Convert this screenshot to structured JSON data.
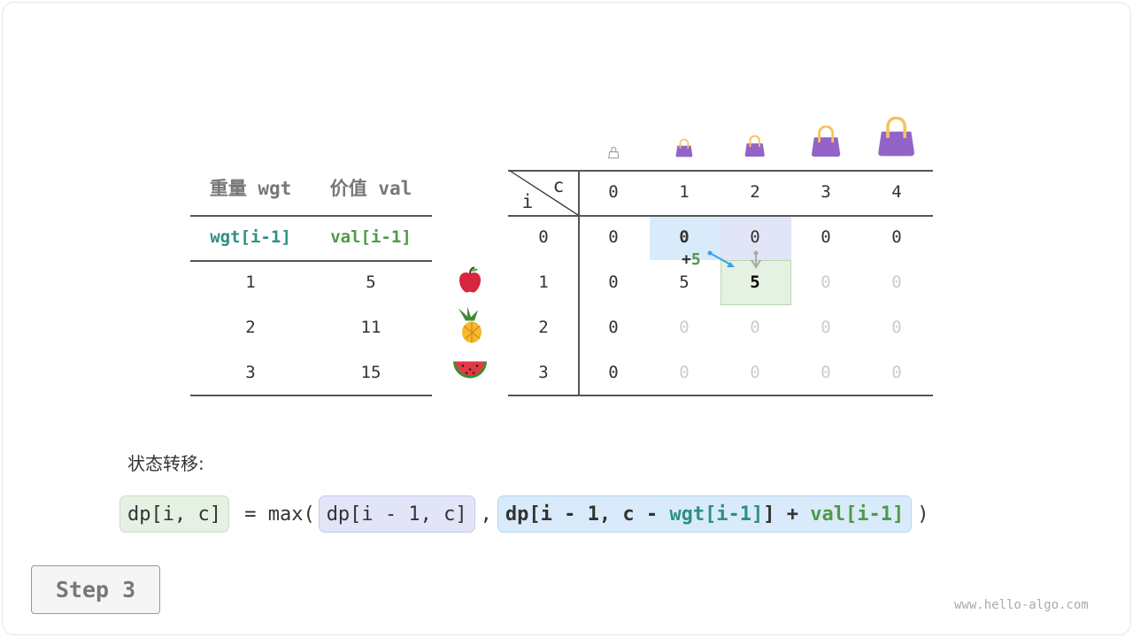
{
  "items_table": {
    "headers": [
      "重量 wgt",
      "价值 val"
    ],
    "subheaders": [
      "wgt[i-1]",
      "val[i-1]"
    ],
    "rows": [
      [
        "1",
        "5"
      ],
      [
        "2",
        "11"
      ],
      [
        "3",
        "15"
      ]
    ],
    "fruit_icons": [
      "apple-icon",
      "pineapple-icon",
      "watermelon-icon"
    ]
  },
  "dp_table": {
    "corner_row_label": "i",
    "corner_col_label": "c",
    "col_headers": [
      "0",
      "1",
      "2",
      "3",
      "4"
    ],
    "row_headers": [
      "0",
      "1",
      "2",
      "3"
    ],
    "rows": [
      [
        "0",
        "0",
        "0",
        "0",
        "0"
      ],
      [
        "0",
        "5",
        "5",
        "0",
        "0"
      ],
      [
        "0",
        "0",
        "0",
        "0",
        "0"
      ],
      [
        "0",
        "0",
        "0",
        "0",
        "0"
      ]
    ],
    "computed": [
      [
        1,
        1,
        1,
        1,
        1
      ],
      [
        1,
        1,
        1,
        0,
        0
      ],
      [
        1,
        0,
        0,
        0,
        0
      ],
      [
        1,
        0,
        0,
        0,
        0
      ]
    ],
    "annotation": {
      "plus": "+",
      "value": "5"
    }
  },
  "transition_label": "状态转移:",
  "formula": {
    "lhs": "dp[i, c]",
    "eq": " = max(",
    "a": "dp[i - 1, c]",
    "comma": ",",
    "b1": "dp[i - 1, c - ",
    "b_wgt": "wgt[i-1]",
    "b2": "] + ",
    "b_val": "val[i-1]",
    "close": ")"
  },
  "step_button": "Step 3",
  "watermark": "www.hello-algo.com",
  "colors": {
    "teal": "#2f8f83",
    "green": "#4e9a4a",
    "blue_hl": "#d9ebfa",
    "purple_hl": "#e2e4f8",
    "green_hl": "#e5f1e2",
    "bag": "#9463c8",
    "handle": "#f6c25c"
  }
}
